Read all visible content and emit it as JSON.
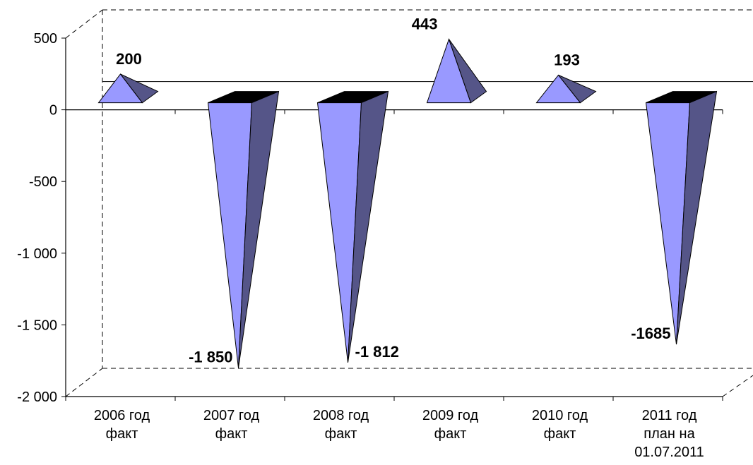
{
  "chart_data": {
    "type": "bar",
    "style": "3d-cone",
    "categories": [
      [
        "2006 год",
        "факт"
      ],
      [
        "2007 год",
        "факт"
      ],
      [
        "2008 год",
        "факт"
      ],
      [
        "2009 год",
        "факт"
      ],
      [
        "2010 год",
        "факт"
      ],
      [
        "2011 год",
        "план на",
        "01.07.2011"
      ]
    ],
    "values": [
      200,
      -1850,
      -1812,
      443,
      193,
      -1685
    ],
    "data_labels": [
      "200",
      "-1 850",
      "-1 812",
      "443",
      "193",
      "-1685"
    ],
    "y_ticks": [
      500,
      0,
      -500,
      -1000,
      -1500,
      -2000
    ],
    "y_tick_labels": [
      "500",
      "0",
      "-500",
      "-1 000",
      "-1 500",
      "-2 000"
    ],
    "ylim": [
      -2000,
      500
    ],
    "grid": false,
    "colors": {
      "front": "#9999FF",
      "side": "#555588",
      "cap": "#000000"
    }
  }
}
